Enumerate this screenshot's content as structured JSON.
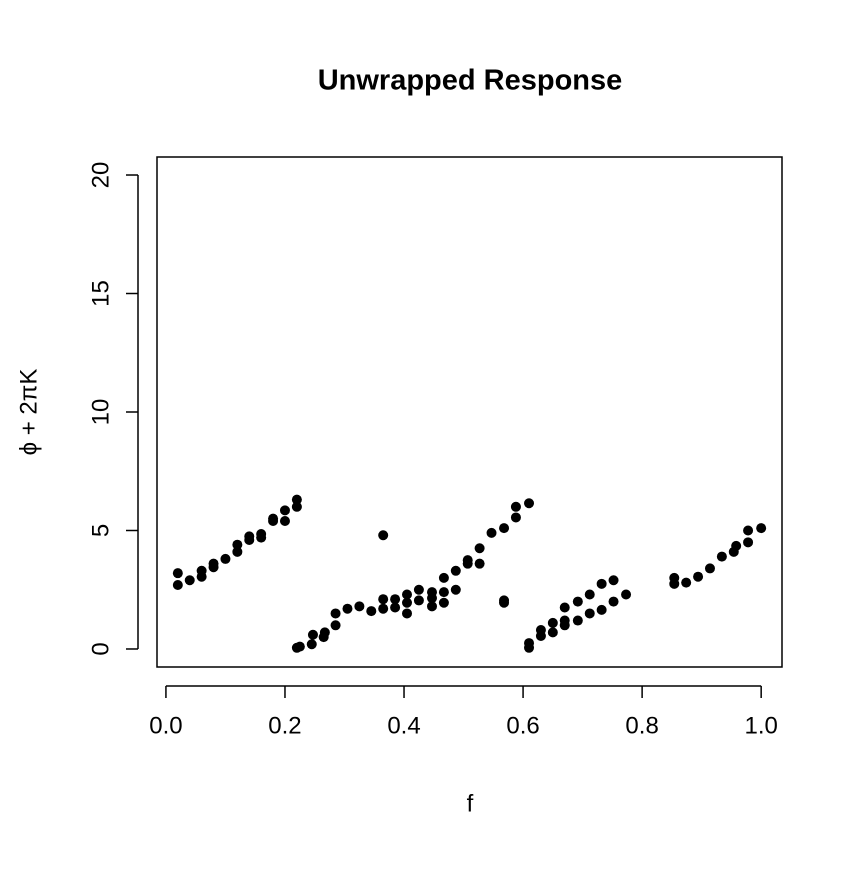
{
  "chart_data": {
    "type": "scatter",
    "title": "Unwrapped Response",
    "x_label": "f",
    "y_label": "ϕ + 2πK",
    "color": "#000000",
    "grid": false,
    "x": [
      0.02,
      0.02,
      0.04,
      0.06,
      0.06,
      0.08,
      0.08,
      0.1,
      0.12,
      0.12,
      0.14,
      0.14,
      0.16,
      0.16,
      0.18,
      0.18,
      0.2,
      0.2,
      0.22,
      0.22,
      0.22,
      0.225,
      0.245,
      0.247,
      0.265,
      0.267,
      0.285,
      0.285,
      0.305,
      0.325,
      0.345,
      0.365,
      0.365,
      0.365,
      0.385,
      0.385,
      0.405,
      0.405,
      0.405,
      0.425,
      0.425,
      0.447,
      0.447,
      0.447,
      0.467,
      0.467,
      0.467,
      0.487,
      0.487,
      0.507,
      0.507,
      0.527,
      0.527,
      0.547,
      0.568,
      0.568,
      0.568,
      0.588,
      0.588,
      0.61,
      0.61,
      0.61,
      0.63,
      0.63,
      0.65,
      0.65,
      0.67,
      0.67,
      0.67,
      0.692,
      0.692,
      0.712,
      0.712,
      0.732,
      0.732,
      0.752,
      0.752,
      0.773,
      0.854,
      0.854,
      0.874,
      0.894,
      0.914,
      0.934,
      0.954,
      0.958,
      0.978,
      0.978,
      1.0
    ],
    "y": [
      3.2,
      2.7,
      2.9,
      3.05,
      3.3,
      3.45,
      3.6,
      3.8,
      4.1,
      4.4,
      4.6,
      4.75,
      4.7,
      4.85,
      5.4,
      5.5,
      5.4,
      5.85,
      6.0,
      6.3,
      0.05,
      0.1,
      0.2,
      0.6,
      0.5,
      0.7,
      1.0,
      1.5,
      1.7,
      1.8,
      1.6,
      1.7,
      2.1,
      4.8,
      1.75,
      2.1,
      1.5,
      1.95,
      2.3,
      2.05,
      2.5,
      1.8,
      2.15,
      2.4,
      1.95,
      2.4,
      3.0,
      2.5,
      3.3,
      3.75,
      3.6,
      4.25,
      3.6,
      4.9,
      5.1,
      1.95,
      2.05,
      5.55,
      6.0,
      6.15,
      0.05,
      0.25,
      0.55,
      0.8,
      0.7,
      1.1,
      1.0,
      1.2,
      1.75,
      1.2,
      2.0,
      1.5,
      2.3,
      1.65,
      2.75,
      2.0,
      2.9,
      2.3,
      3.0,
      2.75,
      2.8,
      3.05,
      3.4,
      3.9,
      4.1,
      4.35,
      4.5,
      5.0,
      5.1
    ],
    "xlim": [
      -0.015,
      1.035
    ],
    "ylim": [
      -0.76,
      20.76
    ],
    "xticks": [
      {
        "value": 0,
        "label": "0.0"
      },
      0.2,
      0.4,
      0.6,
      0.8,
      {
        "value": 1,
        "label": "1.0"
      }
    ],
    "yticks": [
      0,
      5,
      10,
      15,
      20
    ]
  }
}
